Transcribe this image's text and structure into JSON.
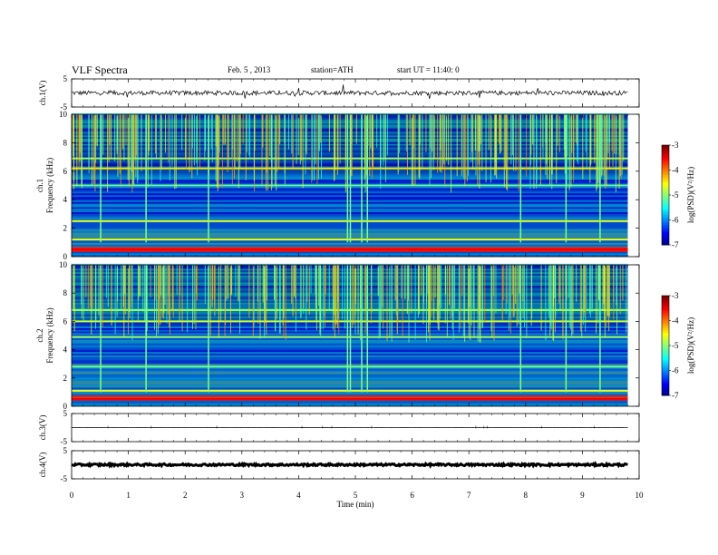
{
  "header": {
    "title": "VLF Spectra",
    "date": "Feb. 5 , 2013",
    "station": "station=ATH",
    "start": "start UT = 11:40: 0"
  },
  "chart_data": [
    {
      "type": "line",
      "panel": "ch1-waveform",
      "ylabel": "ch.1(V)",
      "ylim": [
        -5,
        5
      ],
      "yticks": [
        "5",
        "-5"
      ],
      "xlim": [
        0,
        10
      ],
      "baseline": 0,
      "noise_amp": 0.8,
      "color": "#000000"
    },
    {
      "type": "heatmap",
      "panel": "ch1-spectrogram",
      "ylabel_top": "ch.1",
      "ylabel": "Frequency (kHz)",
      "ylim": [
        0,
        10
      ],
      "yticks": [
        "0",
        "2",
        "4",
        "6",
        "8",
        "10"
      ],
      "xlim": [
        0,
        9.8
      ],
      "colorbar": {
        "label": "log(PSD)(V²/Hz)",
        "range": [
          -7,
          -3
        ],
        "ticks": [
          "-3",
          "-4",
          "-5",
          "-6",
          "-7"
        ]
      },
      "strong_bands_khz": [
        0.4,
        0.6,
        1.2,
        2.5,
        5.0,
        6.2,
        6.9
      ],
      "burst_times_min": [
        0.5,
        1.3,
        2.4,
        4.85,
        4.9,
        5.1,
        5.2,
        7.9,
        8.7,
        9.3
      ]
    },
    {
      "type": "heatmap",
      "panel": "ch2-spectrogram",
      "ylabel_top": "ch.2",
      "ylabel": "Frequency (kHz)",
      "ylim": [
        0,
        10
      ],
      "yticks": [
        "0",
        "2",
        "4",
        "6",
        "8",
        "10"
      ],
      "xlim": [
        0,
        9.8
      ],
      "colorbar": {
        "label": "log(PSD)(V²/Hz)",
        "range": [
          -7,
          -3
        ],
        "ticks": [
          "-3",
          "-4",
          "-5",
          "-6",
          "-7"
        ]
      },
      "strong_bands_khz": [
        0.7,
        1.1,
        2.8,
        4.9,
        6.0,
        6.8
      ],
      "burst_times_min": [
        0.5,
        1.3,
        2.4,
        4.85,
        4.9,
        5.1,
        5.2,
        7.9,
        8.7,
        9.3
      ]
    },
    {
      "type": "line",
      "panel": "ch3-waveform",
      "ylabel": "ch.3(V)",
      "ylim": [
        -5,
        5
      ],
      "yticks": [
        "5",
        "-5"
      ],
      "xlim": [
        0,
        10
      ],
      "baseline": 0,
      "noise_amp": 0.05,
      "color": "#000000"
    },
    {
      "type": "line",
      "panel": "ch4-waveform",
      "ylabel": "ch.4(V)",
      "ylim": [
        -5,
        5
      ],
      "yticks": [
        "5",
        "-5"
      ],
      "xlim": [
        0,
        10
      ],
      "baseline": 0,
      "noise_amp": 0.35,
      "color": "#000000"
    }
  ],
  "xaxis": {
    "label": "Time (min)",
    "ticks": [
      "0",
      "1",
      "2",
      "3",
      "4",
      "5",
      "6",
      "7",
      "8",
      "9",
      "10"
    ]
  }
}
